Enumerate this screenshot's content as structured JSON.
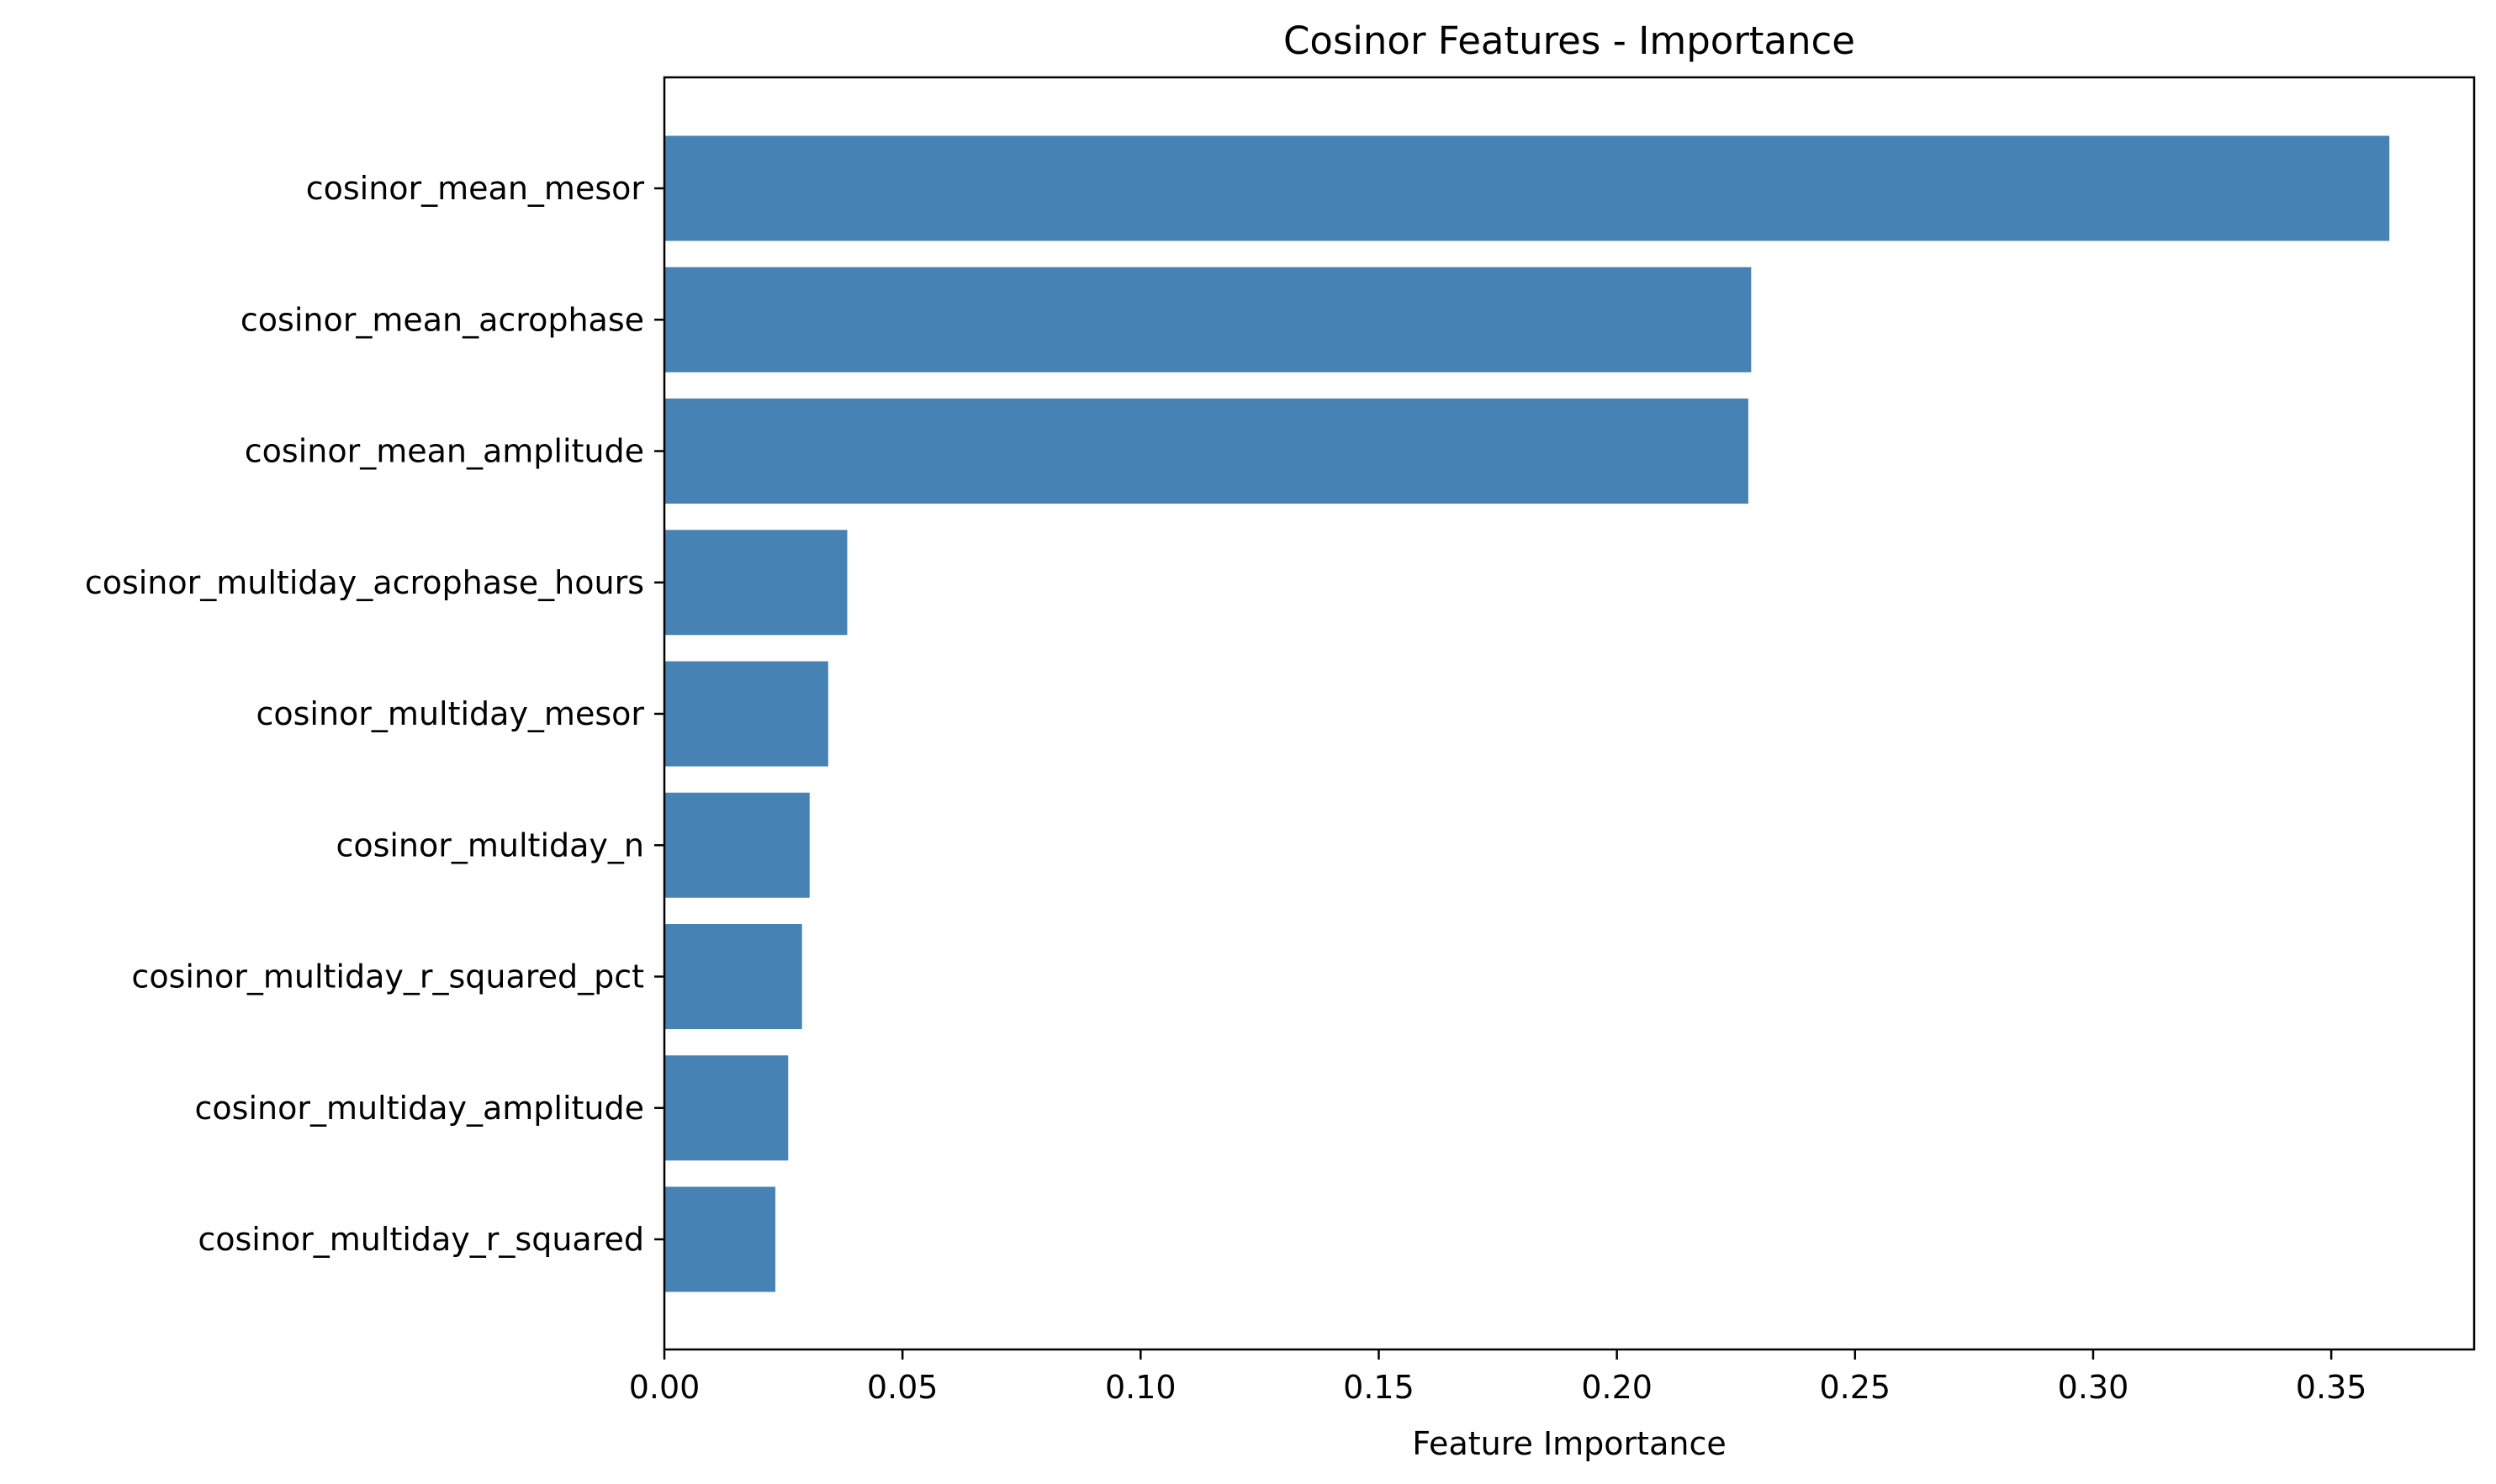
{
  "chart_data": {
    "type": "bar",
    "orientation": "horizontal",
    "title": "Cosinor Features - Importance",
    "xlabel": "Feature Importance",
    "ylabel": "",
    "categories": [
      "cosinor_mean_mesor",
      "cosinor_mean_acrophase",
      "cosinor_mean_amplitude",
      "cosinor_multiday_acrophase_hours",
      "cosinor_multiday_mesor",
      "cosinor_multiday_n",
      "cosinor_multiday_r_squared_pct",
      "cosinor_multiday_amplitude",
      "cosinor_multiday_r_squared"
    ],
    "values": [
      0.3622,
      0.2282,
      0.2276,
      0.0384,
      0.0344,
      0.0305,
      0.0289,
      0.026,
      0.0233
    ],
    "xlim": [
      0,
      0.38
    ],
    "xticks": [
      0.0,
      0.05,
      0.1,
      0.15,
      0.2,
      0.25,
      0.3,
      0.35
    ],
    "xtick_labels": [
      "0.00",
      "0.05",
      "0.10",
      "0.15",
      "0.20",
      "0.25",
      "0.30",
      "0.35"
    ],
    "bar_color": "#4682b4",
    "grid": false,
    "legend": "none"
  }
}
